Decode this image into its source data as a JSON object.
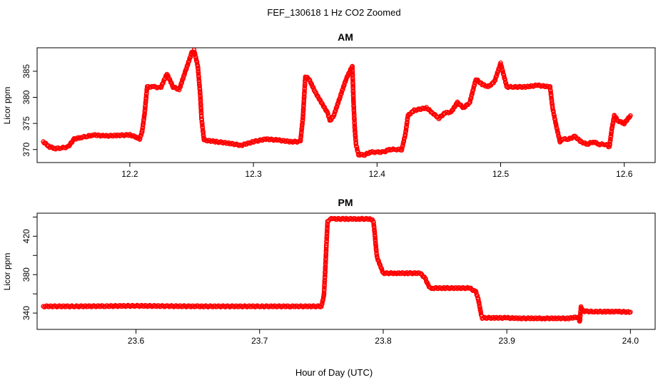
{
  "figure": {
    "title": "FEF_130618  1 Hz CO2 Zoomed",
    "xlabel": "Hour of Day (UTC)"
  },
  "chart_data": [
    {
      "type": "scatter",
      "title": "AM",
      "ylabel": "Licor ppm",
      "xlim": [
        12.125,
        12.625
      ],
      "ylim": [
        367.5,
        389.5
      ],
      "xticks": [
        12.2,
        12.3,
        12.4,
        12.5,
        12.6
      ],
      "xtick_labels": [
        "12.2",
        "12.3",
        "12.4",
        "12.5",
        "12.6"
      ],
      "yticks": [
        370,
        375,
        380,
        385
      ],
      "ytick_labels": [
        "370",
        "375",
        "380",
        "385"
      ],
      "marker_color": "#ff0000",
      "grid": false,
      "series": [
        {
          "x": [
            12.13,
            12.135,
            12.14,
            12.145,
            12.15,
            12.155,
            12.16,
            12.165,
            12.17,
            12.18,
            12.19,
            12.2,
            12.205,
            12.208,
            12.21,
            12.212,
            12.214,
            12.22,
            12.225,
            12.23,
            12.235,
            12.24,
            12.245,
            12.25,
            12.252,
            12.255,
            12.257,
            12.258,
            12.26,
            12.27,
            12.28,
            12.29,
            12.3,
            12.31,
            12.32,
            12.33,
            12.338,
            12.34,
            12.342,
            12.345,
            12.35,
            12.36,
            12.362,
            12.365,
            12.37,
            12.375,
            12.38,
            12.381,
            12.382,
            12.383,
            12.385,
            12.39,
            12.395,
            12.4,
            12.405,
            12.41,
            12.415,
            12.42,
            12.423,
            12.425,
            12.43,
            12.44,
            12.445,
            12.45,
            12.455,
            12.46,
            12.465,
            12.47,
            12.475,
            12.48,
            12.485,
            12.49,
            12.495,
            12.5,
            12.505,
            12.51,
            12.52,
            12.53,
            12.54,
            12.542,
            12.545,
            12.548,
            12.55,
            12.555,
            12.56,
            12.565,
            12.57,
            12.575,
            12.58,
            12.585,
            12.588,
            12.59,
            12.592,
            12.595,
            12.6,
            12.605
          ],
          "y": [
            371.5,
            370.5,
            370.2,
            370.3,
            370.5,
            372.0,
            372.3,
            372.5,
            372.8,
            372.6,
            372.7,
            372.8,
            372.4,
            372.0,
            373.5,
            377.0,
            382.0,
            382.0,
            381.8,
            384.5,
            382.0,
            381.5,
            385.0,
            388.5,
            389.0,
            386.0,
            380.5,
            376.0,
            371.8,
            371.5,
            371.2,
            370.8,
            371.5,
            372.0,
            371.8,
            371.5,
            371.5,
            376.0,
            384.0,
            383.5,
            381.0,
            377.0,
            375.5,
            376.5,
            380.0,
            383.5,
            386.0,
            379.0,
            374.0,
            371.0,
            369.0,
            369.0,
            369.5,
            369.5,
            369.5,
            370.0,
            370.0,
            370.0,
            373.0,
            376.5,
            377.5,
            378.0,
            377.0,
            376.0,
            377.0,
            377.2,
            379.0,
            378.0,
            379.0,
            383.5,
            382.5,
            382.0,
            383.0,
            386.5,
            382.0,
            382.0,
            382.0,
            382.3,
            382.0,
            378.0,
            374.5,
            371.5,
            372.0,
            372.0,
            372.5,
            371.5,
            371.0,
            371.5,
            371.0,
            371.0,
            370.5,
            374.0,
            376.5,
            375.5,
            375.0,
            376.5
          ]
        }
      ]
    },
    {
      "type": "scatter",
      "title": "PM",
      "ylabel": "Licor ppm",
      "xlim": [
        23.52,
        24.02
      ],
      "ylim": [
        323,
        444
      ],
      "xticks": [
        23.6,
        23.7,
        23.8,
        23.9,
        24.0
      ],
      "xtick_labels": [
        "23.6",
        "23.7",
        "23.8",
        "23.9",
        "24.0"
      ],
      "yticks": [
        340,
        360,
        380,
        400,
        420,
        440
      ],
      "ytick_labels": [
        "340",
        "",
        "380",
        "",
        "420",
        ""
      ],
      "marker_color": "#ff0000",
      "grid": false,
      "series": [
        {
          "x": [
            23.525,
            23.55,
            23.575,
            23.6,
            23.625,
            23.65,
            23.675,
            23.7,
            23.725,
            23.75,
            23.752,
            23.753,
            23.754,
            23.755,
            23.756,
            23.757,
            23.76,
            23.77,
            23.78,
            23.79,
            23.792,
            23.793,
            23.794,
            23.795,
            23.8,
            23.81,
            23.82,
            23.83,
            23.834,
            23.836,
            23.838,
            23.84,
            23.85,
            23.86,
            23.87,
            23.875,
            23.877,
            23.879,
            23.88,
            23.89,
            23.9,
            23.91,
            23.92,
            23.93,
            23.94,
            23.95,
            23.958,
            23.959,
            23.96,
            23.962,
            23.97,
            23.98,
            23.99,
            24.0
          ],
          "y": [
            347.0,
            347.0,
            347.2,
            347.5,
            347.2,
            347.0,
            347.0,
            347.0,
            347.0,
            347.0,
            358.0,
            382.0,
            410.0,
            436.0,
            437.0,
            438.0,
            438.0,
            438.0,
            438.0,
            438.0,
            436.0,
            425.0,
            410.0,
            398.0,
            381.5,
            381.5,
            381.5,
            381.5,
            376.0,
            370.0,
            366.0,
            366.0,
            366.0,
            366.0,
            366.0,
            362.0,
            354.0,
            340.0,
            335.0,
            335.0,
            335.0,
            334.5,
            334.5,
            334.5,
            334.5,
            334.5,
            336.0,
            331.0,
            346.0,
            342.0,
            341.5,
            341.5,
            341.5,
            341.0
          ]
        }
      ]
    }
  ]
}
